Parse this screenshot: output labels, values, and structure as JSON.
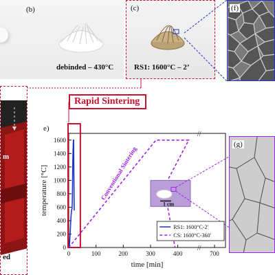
{
  "panels": {
    "b": {
      "label": "(b)",
      "caption": "debinded – 430°C"
    },
    "c": {
      "label": "(c)",
      "caption": "RS1: 1600°C – 2’"
    },
    "f": {
      "label": "(f)"
    },
    "g": {
      "label": "(g)"
    },
    "e": {
      "label": "e)"
    },
    "left": {
      "fragment_m": "m",
      "fragment_ed": "ed"
    }
  },
  "title": "Rapid Sintering",
  "chart_data": {
    "type": "line",
    "xlabel": "time [min]",
    "ylabel": "temperature [°C]",
    "xticks": [
      "0",
      "100",
      "200",
      "300",
      "400",
      "700"
    ],
    "yticks": [
      0,
      200,
      400,
      600,
      800,
      1000,
      1200,
      1400,
      1600
    ],
    "ylim": [
      0,
      1700
    ],
    "axis_break": "//",
    "series": [
      {
        "name": "RS1: 1600°C-2'",
        "style": "solid",
        "color": "#1f33c8",
        "points": [
          [
            2,
            0
          ],
          [
            5,
            200
          ],
          [
            8,
            450
          ],
          [
            10,
            550
          ],
          [
            12,
            580
          ],
          [
            13,
            700
          ],
          [
            14,
            1000
          ],
          [
            15,
            1300
          ],
          [
            17,
            1600
          ],
          [
            18,
            1600
          ],
          [
            20,
            560
          ],
          [
            22,
            560
          ]
        ]
      },
      {
        "name": "CS:  1600°C-360'",
        "style": "dashed",
        "color": "#a020f0",
        "points": [
          [
            0,
            0
          ],
          [
            320,
            1600
          ],
          [
            440,
            1600
          ],
          [
            470,
            900
          ],
          [
            520,
            0
          ]
        ]
      }
    ],
    "annotation": "Conventional Sintering",
    "inset_scale": "1 cm",
    "legend_position": "bottom-right"
  },
  "colors": {
    "accent_red": "#c8102e",
    "rs_blue": "#1f33c8",
    "cs_purple": "#a020f0"
  }
}
